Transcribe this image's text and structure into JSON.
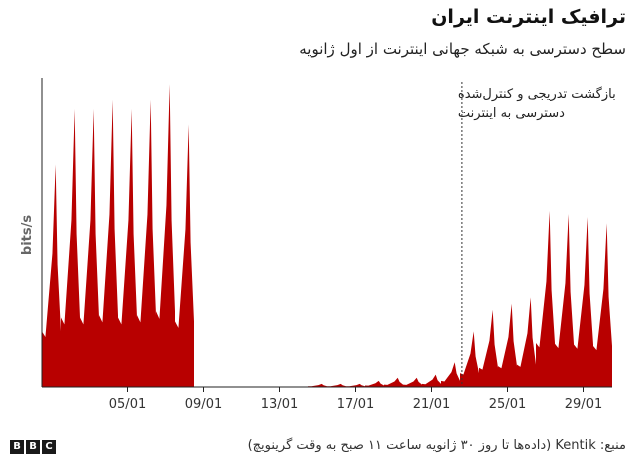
{
  "header": {
    "title": "ترافیک اینترنت ایران",
    "subtitle": "سطح دسترسی به شبکه جهانی اینترنت از اول ژانویه"
  },
  "chart_data": {
    "type": "area",
    "title": "ترافیک اینترنت ایران",
    "subtitle": "سطح دسترسی به شبکه جهانی اینترنت از اول ژانویه",
    "ylabel": "bits/s",
    "xlabel": "",
    "x_start": "01/01",
    "x_end": "30/01",
    "x_ticks": [
      "05/01",
      "09/01",
      "13/01",
      "17/01",
      "21/01",
      "25/01",
      "29/01"
    ],
    "ylim": [
      0,
      1
    ],
    "y_scale_note": "relative (no numeric y-axis shown)",
    "grid": false,
    "color": "#b80000",
    "series": [
      {
        "day_peaks": [
          {
            "date": "01/01",
            "peak": 0.72
          },
          {
            "date": "02/01",
            "peak": 0.9
          },
          {
            "date": "03/01",
            "peak": 0.9
          },
          {
            "date": "04/01",
            "peak": 0.93
          },
          {
            "date": "05/01",
            "peak": 0.9
          },
          {
            "date": "06/01",
            "peak": 0.93
          },
          {
            "date": "07/01",
            "peak": 0.98
          },
          {
            "date": "08/01",
            "peak": 0.85
          },
          {
            "date": "09/01",
            "peak": 0.0
          },
          {
            "date": "10/01",
            "peak": 0.0
          },
          {
            "date": "11/01",
            "peak": 0.0
          },
          {
            "date": "12/01",
            "peak": 0.0
          },
          {
            "date": "13/01",
            "peak": 0.0
          },
          {
            "date": "14/01",
            "peak": 0.0
          },
          {
            "date": "15/01",
            "peak": 0.01
          },
          {
            "date": "16/01",
            "peak": 0.01
          },
          {
            "date": "17/01",
            "peak": 0.01
          },
          {
            "date": "18/01",
            "peak": 0.02
          },
          {
            "date": "19/01",
            "peak": 0.03
          },
          {
            "date": "20/01",
            "peak": 0.03
          },
          {
            "date": "21/01",
            "peak": 0.04
          },
          {
            "date": "22/01",
            "peak": 0.08
          },
          {
            "date": "23/01",
            "peak": 0.18
          },
          {
            "date": "24/01",
            "peak": 0.25
          },
          {
            "date": "25/01",
            "peak": 0.27
          },
          {
            "date": "26/01",
            "peak": 0.29
          },
          {
            "date": "27/01",
            "peak": 0.57
          },
          {
            "date": "28/01",
            "peak": 0.56
          },
          {
            "date": "29/01",
            "peak": 0.55
          },
          {
            "date": "30/01",
            "peak": 0.53
          }
        ],
        "day_trough_ratio": 0.25
      }
    ],
    "annotation": {
      "date": "23/01",
      "line1": "بازگشت تدریجی و کنترل‌شده",
      "line2": "دسترسی به اینترنت"
    }
  },
  "footer": {
    "logo_letters": [
      "B",
      "B",
      "C"
    ],
    "source": "منبع: Kentik (داده‌ها تا روز ۳۰ ژانویه ساعت ۱۱ صبح به وقت گرینویچ)"
  }
}
